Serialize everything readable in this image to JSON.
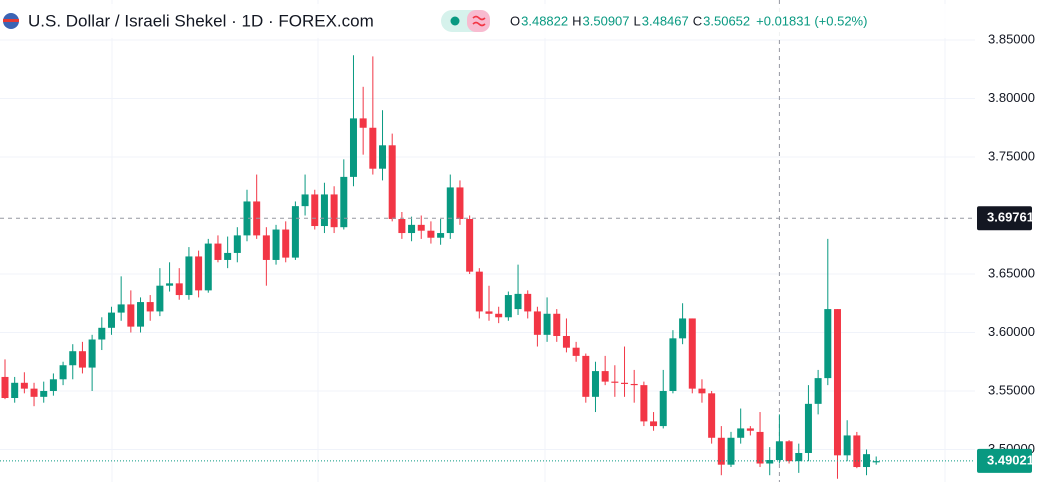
{
  "chart_data": {
    "type": "candlestick",
    "title": "U.S. Dollar / Israeli Shekel · 1D · FOREX.com",
    "legend": {
      "ohlc": [
        {
          "label": "O",
          "value": 3.48822
        },
        {
          "label": "H",
          "value": 3.50907
        },
        {
          "label": "L",
          "value": 3.48467
        },
        {
          "label": "C",
          "value": 3.50652
        }
      ],
      "change": "+0.01831 (+0.52%)"
    },
    "up_color": "#089981",
    "down_color": "#f23645",
    "ylim": [
      3.4722,
      3.8842
    ],
    "yticks": [
      {
        "value": 3.5,
        "label": "3.50000"
      },
      {
        "value": 3.55,
        "label": "3.55000"
      },
      {
        "value": 3.6,
        "label": "3.60000"
      },
      {
        "value": 3.65,
        "label": "3.65000"
      },
      {
        "value": 3.75,
        "label": "3.75000"
      },
      {
        "value": 3.8,
        "label": "3.80000"
      },
      {
        "value": 3.85,
        "label": "3.85000"
      }
    ],
    "grid": true,
    "crosshair_price": 3.69761,
    "last_price": 3.49021,
    "open": [
      3.562,
      3.544,
      3.557,
      3.552,
      3.545,
      3.55,
      3.56,
      3.572,
      3.584,
      3.57,
      3.594,
      3.604,
      3.617,
      3.624,
      3.605,
      3.626,
      3.618,
      3.64,
      3.642,
      3.632,
      3.665,
      3.636,
      3.676,
      3.662,
      3.668,
      3.683,
      3.712,
      3.683,
      3.662,
      3.688,
      3.664,
      3.708,
      3.718,
      3.691,
      3.718,
      3.69,
      3.733,
      3.783,
      3.775,
      3.74,
      3.76,
      3.697,
      3.685,
      3.692,
      3.687,
      3.681,
      3.685,
      3.724,
      3.697,
      3.652,
      3.618,
      3.616,
      3.613,
      3.62,
      3.633,
      3.618,
      3.598,
      3.616,
      3.597,
      3.587,
      3.58,
      3.545,
      3.567,
      3.558,
      3.557,
      3.556,
      3.555,
      3.524,
      3.52,
      3.55,
      3.595,
      3.612,
      3.552,
      3.548,
      3.51,
      3.487,
      3.51,
      3.518,
      3.515,
      3.488,
      3.491,
      3.507,
      3.49,
      3.497,
      3.539,
      3.561,
      3.62,
      3.495,
      3.512,
      3.485,
      3.489
    ],
    "high": [
      3.577,
      3.562,
      3.566,
      3.557,
      3.558,
      3.565,
      3.575,
      3.59,
      3.592,
      3.598,
      3.613,
      3.622,
      3.648,
      3.636,
      3.63,
      3.632,
      3.655,
      3.66,
      3.655,
      3.673,
      3.67,
      3.68,
      3.683,
      3.682,
      3.69,
      3.722,
      3.735,
      3.69,
      3.692,
      3.695,
      3.712,
      3.735,
      3.722,
      3.728,
      3.725,
      3.748,
      3.837,
      3.81,
      3.836,
      3.79,
      3.77,
      3.703,
      3.699,
      3.7,
      3.695,
      3.697,
      3.735,
      3.73,
      3.7,
      3.655,
      3.64,
      3.622,
      3.635,
      3.658,
      3.636,
      3.622,
      3.63,
      3.62,
      3.612,
      3.592,
      3.582,
      3.575,
      3.58,
      3.572,
      3.588,
      3.568,
      3.558,
      3.532,
      3.568,
      3.602,
      3.625,
      3.612,
      3.56,
      3.55,
      3.52,
      3.515,
      3.535,
      3.52,
      3.532,
      3.502,
      3.53,
      3.508,
      3.505,
      3.555,
      3.568,
      3.68,
      3.62,
      3.525,
      3.515,
      3.5,
      3.494
    ],
    "low": [
      3.543,
      3.54,
      3.548,
      3.537,
      3.54,
      3.546,
      3.555,
      3.56,
      3.565,
      3.55,
      3.585,
      3.598,
      3.61,
      3.6,
      3.6,
      3.61,
      3.614,
      3.635,
      3.628,
      3.628,
      3.63,
      3.634,
      3.66,
      3.655,
      3.66,
      3.678,
      3.68,
      3.64,
      3.658,
      3.66,
      3.662,
      3.7,
      3.688,
      3.685,
      3.685,
      3.688,
      3.725,
      3.752,
      3.735,
      3.73,
      3.695,
      3.68,
      3.678,
      3.68,
      3.676,
      3.675,
      3.68,
      3.692,
      3.65,
      3.612,
      3.61,
      3.608,
      3.61,
      3.615,
      3.612,
      3.588,
      3.592,
      3.592,
      3.583,
      3.575,
      3.54,
      3.532,
      3.555,
      3.545,
      3.545,
      3.54,
      3.52,
      3.516,
      3.518,
      3.548,
      3.59,
      3.548,
      3.54,
      3.505,
      3.478,
      3.485,
      3.505,
      3.512,
      3.485,
      3.478,
      3.488,
      3.488,
      3.48,
      3.49,
      3.53,
      3.555,
      3.475,
      3.49,
      3.484,
      3.478,
      3.487
    ],
    "close": [
      3.544,
      3.557,
      3.552,
      3.545,
      3.55,
      3.56,
      3.572,
      3.584,
      3.57,
      3.594,
      3.604,
      3.617,
      3.624,
      3.605,
      3.626,
      3.618,
      3.64,
      3.642,
      3.632,
      3.665,
      3.636,
      3.676,
      3.662,
      3.668,
      3.683,
      3.712,
      3.683,
      3.662,
      3.688,
      3.664,
      3.708,
      3.718,
      3.691,
      3.718,
      3.69,
      3.733,
      3.783,
      3.775,
      3.74,
      3.76,
      3.697,
      3.685,
      3.692,
      3.687,
      3.681,
      3.685,
      3.724,
      3.697,
      3.652,
      3.618,
      3.616,
      3.613,
      3.632,
      3.633,
      3.618,
      3.598,
      3.616,
      3.597,
      3.587,
      3.58,
      3.545,
      3.567,
      3.558,
      3.557,
      3.556,
      3.555,
      3.524,
      3.52,
      3.55,
      3.595,
      3.612,
      3.552,
      3.548,
      3.51,
      3.487,
      3.51,
      3.518,
      3.516,
      3.488,
      3.491,
      3.507,
      3.49,
      3.497,
      3.539,
      3.561,
      3.62,
      3.495,
      3.512,
      3.485,
      3.496,
      3.49
    ]
  }
}
